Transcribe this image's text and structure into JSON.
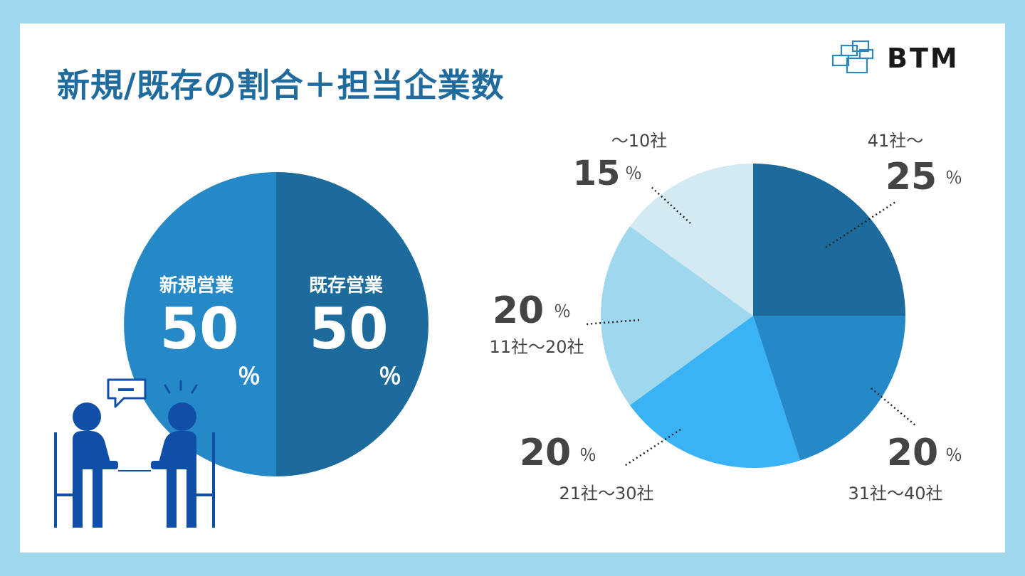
{
  "title": "新規/既存の割合＋担当企業数",
  "logo": {
    "text": "BTM"
  },
  "colors": {
    "page_bg": "#9fd7ef",
    "title": "#1f6b9e",
    "new_sales": "#2589c8",
    "existing_sales": "#1d6a9c",
    "label_dark": "#444444"
  },
  "chart_data": [
    {
      "type": "pie",
      "categories": [
        "新規営業",
        "既存営業"
      ],
      "values": [
        50,
        50
      ],
      "unit": "％",
      "colors": [
        "#2589c8",
        "#1d6a9c"
      ],
      "value_labels": [
        "50",
        "50"
      ]
    },
    {
      "type": "pie",
      "categories": [
        "41社～",
        "31社～40社",
        "21社～30社",
        "11社～20社",
        "～10社"
      ],
      "values": [
        25,
        20,
        20,
        20,
        15
      ],
      "unit": "％",
      "colors": [
        "#1d6a9c",
        "#2589c8",
        "#3ab2f6",
        "#9fd7ef",
        "#d3eaf3"
      ],
      "value_labels": [
        "25",
        "20",
        "20",
        "20",
        "15"
      ]
    }
  ]
}
